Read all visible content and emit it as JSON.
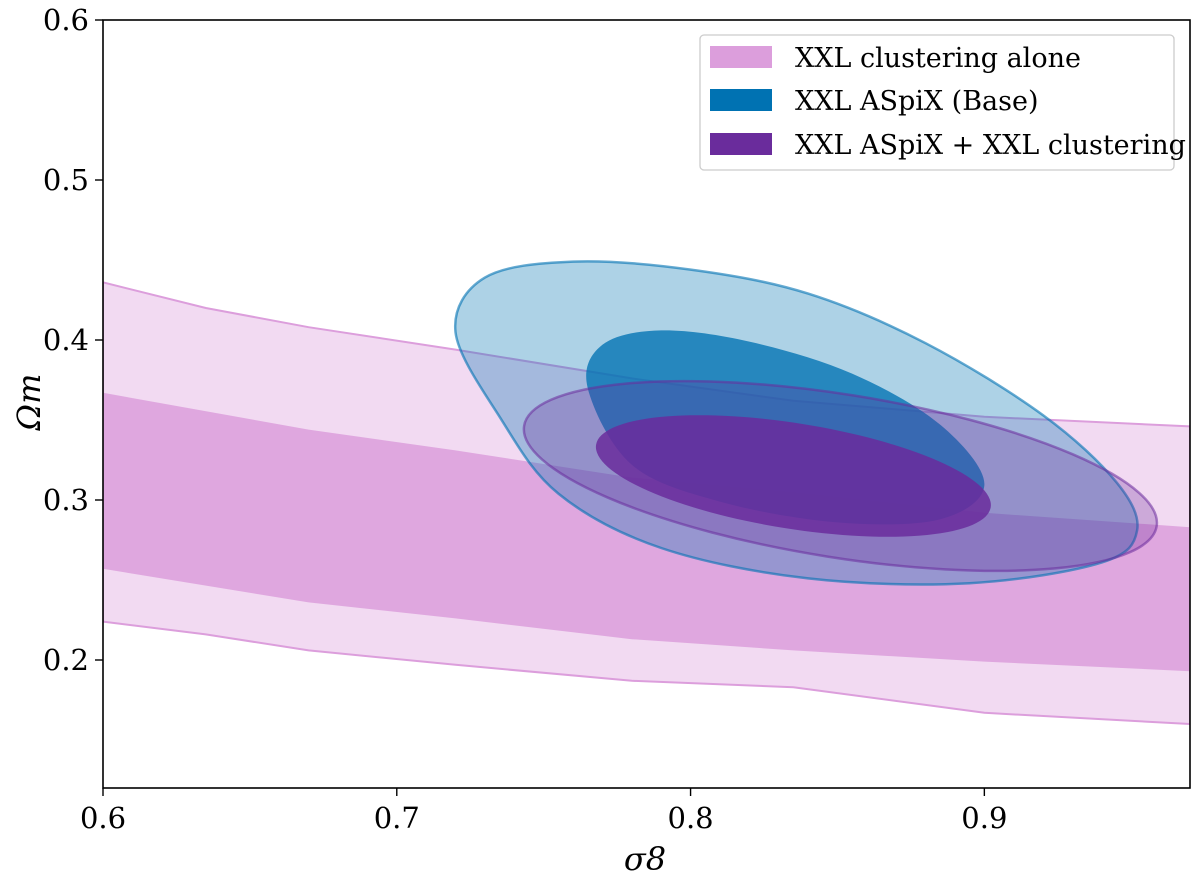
{
  "chart_data": {
    "type": "contour",
    "title": "",
    "xlabel": "σ8",
    "ylabel": "Ωm",
    "xlim": [
      0.6,
      0.97
    ],
    "ylim": [
      0.12,
      0.6
    ],
    "xticks": [
      0.6,
      0.7,
      0.8,
      0.9
    ],
    "xtick_labels": [
      "0.6",
      "0.7",
      "0.8",
      "0.9"
    ],
    "yticks": [
      0.2,
      0.3,
      0.4,
      0.5,
      0.6
    ],
    "ytick_labels": [
      "0.2",
      "0.3",
      "0.4",
      "0.5",
      "0.6"
    ],
    "grid": false,
    "legend_position": "top-right",
    "series": [
      {
        "name": "XXL clustering alone",
        "color": "#dc9edc",
        "shape": "band",
        "contour_2sigma": {
          "x": [
            0.6,
            0.635,
            0.67,
            0.72,
            0.78,
            0.835,
            0.9,
            0.97
          ],
          "upper": [
            0.436,
            0.42,
            0.408,
            0.394,
            0.376,
            0.362,
            0.352,
            0.346
          ],
          "lower": [
            0.224,
            0.216,
            0.206,
            0.197,
            0.187,
            0.183,
            0.167,
            0.16
          ]
        },
        "contour_1sigma": {
          "x": [
            0.6,
            0.67,
            0.72,
            0.78,
            0.835,
            0.9,
            0.97
          ],
          "upper": [
            0.367,
            0.344,
            0.331,
            0.314,
            0.305,
            0.292,
            0.283
          ],
          "lower": [
            0.257,
            0.236,
            0.226,
            0.213,
            0.206,
            0.199,
            0.193
          ]
        }
      },
      {
        "name": "XXL ASpiX (Base)",
        "color": "#0072b2",
        "shape": "ellipse",
        "contour_2sigma": {
          "x": [
            0.735,
            0.72,
            0.73,
            0.76,
            0.8,
            0.84,
            0.88,
            0.92,
            0.945,
            0.952,
            0.94,
            0.895,
            0.84,
            0.79,
            0.755,
            0.735
          ],
          "y": [
            0.352,
            0.405,
            0.439,
            0.449,
            0.444,
            0.429,
            0.398,
            0.353,
            0.311,
            0.281,
            0.261,
            0.248,
            0.251,
            0.27,
            0.304,
            0.352
          ]
        },
        "contour_1sigma": {
          "x": [
            0.765,
            0.77,
            0.79,
            0.82,
            0.855,
            0.885,
            0.9,
            0.885,
            0.85,
            0.81,
            0.78,
            0.765
          ],
          "y": [
            0.37,
            0.397,
            0.406,
            0.399,
            0.379,
            0.347,
            0.31,
            0.288,
            0.286,
            0.299,
            0.322,
            0.37
          ]
        }
      },
      {
        "name": "XXL ASpiX + XXL clustering",
        "color": "#6a2c9c",
        "shape": "ellipse",
        "contour_2sigma": {
          "center": [
            0.851,
            0.315
          ],
          "semi_axis_sigma8": 0.109,
          "semi_axis_omega_m": 0.051,
          "tilt": "negative correlation"
        },
        "contour_1sigma": {
          "center": [
            0.835,
            0.315
          ],
          "semi_axis_sigma8": 0.068,
          "semi_axis_omega_m": 0.033,
          "tilt": "negative correlation"
        }
      }
    ]
  }
}
